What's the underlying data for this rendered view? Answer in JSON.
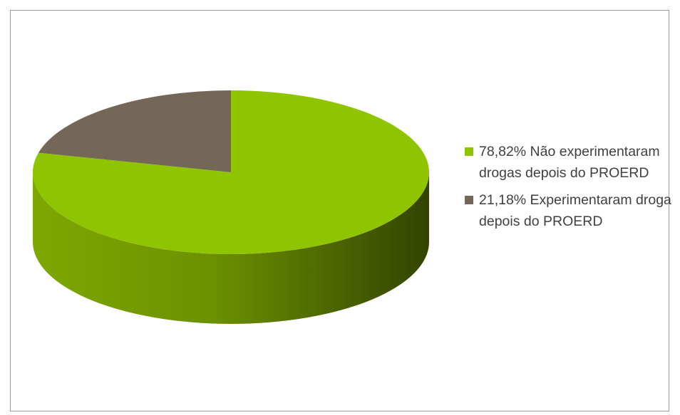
{
  "chart_data": {
    "type": "pie",
    "style": "3d",
    "title": "",
    "slices": [
      {
        "label": "78,82% Não experimentaram drogas depois do PROERD",
        "value": 78.82,
        "color": "#8fc400",
        "side_dark": "#3f5000"
      },
      {
        "label": "21,18% Experimentaram droga depois do PROERD",
        "value": 21.18,
        "color": "#746757",
        "side_dark": "#3a3229"
      }
    ],
    "legend_position": "right"
  }
}
